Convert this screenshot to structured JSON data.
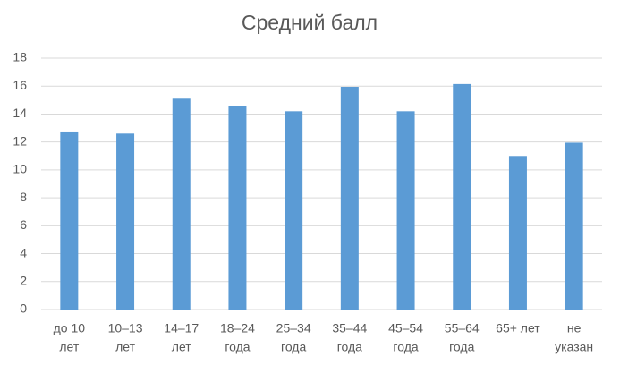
{
  "chart_data": {
    "type": "bar",
    "title": "Средний балл",
    "categories": [
      [
        "до 10",
        "лет"
      ],
      [
        "10–13",
        "лет"
      ],
      [
        "14–17",
        "лет"
      ],
      [
        "18–24",
        "года"
      ],
      [
        "25–34",
        "года"
      ],
      [
        "35–44",
        "года"
      ],
      [
        "45–54",
        "года"
      ],
      [
        "55–64",
        "года"
      ],
      [
        "65+ лет"
      ],
      [
        "не",
        "указан"
      ]
    ],
    "values": [
      12.75,
      12.6,
      15.1,
      14.55,
      14.2,
      15.95,
      14.2,
      16.15,
      11.0,
      11.95
    ],
    "color": "#5b9bd5",
    "ylim": [
      0,
      18
    ],
    "yticks": [
      0,
      2,
      4,
      6,
      8,
      10,
      12,
      14,
      16,
      18
    ],
    "grid": true
  }
}
